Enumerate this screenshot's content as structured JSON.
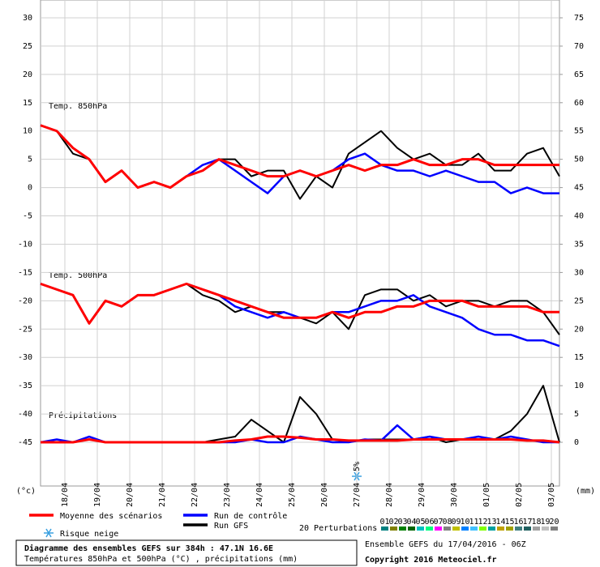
{
  "chart_data": {
    "type": "line",
    "panel_labels": [
      "Temp. 850hPa",
      "Temp. 500hPa",
      "Précipitations"
    ],
    "ylabel": "(°c)",
    "y2label": "(mm)",
    "xlim": [
      0,
      384
    ],
    "ylim": [
      -45,
      30
    ],
    "yticks": [
      -45,
      -40,
      -35,
      -30,
      -25,
      -20,
      -15,
      -10,
      -5,
      0,
      5,
      10,
      15,
      20,
      25,
      30
    ],
    "y2lim": [
      0,
      75
    ],
    "y2ticks": [
      0,
      5,
      10,
      15,
      20,
      25,
      30,
      35,
      40,
      45,
      50,
      55,
      60,
      65,
      70,
      75
    ],
    "xticks": [
      {
        "value": 18,
        "label": "18/04"
      },
      {
        "value": 42,
        "label": "19/04"
      },
      {
        "value": 66,
        "label": "20/04"
      },
      {
        "value": 90,
        "label": "21/04"
      },
      {
        "value": 114,
        "label": "22/04"
      },
      {
        "value": 138,
        "label": "23/04"
      },
      {
        "value": 162,
        "label": "24/04"
      },
      {
        "value": 186,
        "label": "25/04"
      },
      {
        "value": 210,
        "label": "26/04"
      },
      {
        "value": 234,
        "label": "27/04"
      },
      {
        "value": 258,
        "label": "28/04"
      },
      {
        "value": 282,
        "label": "29/04"
      },
      {
        "value": 306,
        "label": "30/04"
      },
      {
        "value": 330,
        "label": "01/05"
      },
      {
        "value": 354,
        "label": "02/05"
      },
      {
        "value": 378,
        "label": "03/05"
      }
    ],
    "grid": true,
    "x": [
      0,
      12,
      24,
      36,
      48,
      60,
      72,
      84,
      96,
      108,
      120,
      132,
      144,
      156,
      168,
      180,
      192,
      204,
      216,
      228,
      240,
      252,
      264,
      276,
      288,
      300,
      312,
      324,
      336,
      348,
      360,
      372,
      384
    ],
    "series": [
      {
        "name": "Moyenne des scénarios",
        "color": "#ff0000",
        "width": 3,
        "values": [
          11,
          10,
          7,
          5,
          1,
          3,
          0,
          1,
          0,
          2,
          3,
          5,
          4,
          3,
          2,
          2,
          3,
          2,
          3,
          4,
          3,
          4,
          4,
          5,
          4,
          4,
          5,
          5,
          4,
          4,
          4,
          4,
          4
        ]
      },
      {
        "name": "Run de contrôle",
        "color": "#0000ff",
        "width": 2.5,
        "values": [
          11,
          10,
          7,
          5,
          1,
          3,
          0,
          1,
          0,
          2,
          4,
          5,
          3,
          1,
          -1,
          2,
          3,
          2,
          3,
          5,
          6,
          4,
          3,
          3,
          2,
          3,
          2,
          1,
          1,
          -1,
          0,
          -1,
          -1
        ]
      },
      {
        "name": "Run GFS",
        "color": "#000000",
        "width": 2,
        "values": [
          11,
          10,
          6,
          5,
          1,
          3,
          0,
          1,
          0,
          2,
          3,
          5,
          5,
          2,
          3,
          3,
          -2,
          2,
          0,
          6,
          8,
          10,
          7,
          5,
          6,
          4,
          4,
          6,
          3,
          3,
          6,
          7,
          2
        ]
      },
      {
        "name": "Moyenne des scénarios",
        "color": "#ff0000",
        "width": 3,
        "values": [
          -17,
          -18,
          -19,
          -24,
          -20,
          -21,
          -19,
          -19,
          -18,
          -17,
          -18,
          -19,
          -20,
          -21,
          -22,
          -23,
          -23,
          -23,
          -22,
          -23,
          -22,
          -22,
          -21,
          -21,
          -20,
          -20,
          -20,
          -21,
          -21,
          -21,
          -21,
          -22,
          -22
        ]
      },
      {
        "name": "Run de contrôle",
        "color": "#0000ff",
        "width": 2.5,
        "values": [
          -17,
          -18,
          -19,
          -24,
          -20,
          -21,
          -19,
          -19,
          -18,
          -17,
          -18,
          -19,
          -21,
          -22,
          -23,
          -22,
          -23,
          -23,
          -22,
          -22,
          -21,
          -20,
          -20,
          -19,
          -21,
          -22,
          -23,
          -25,
          -26,
          -26,
          -27,
          -27,
          -28
        ]
      },
      {
        "name": "Run GFS",
        "color": "#000000",
        "width": 2,
        "values": [
          -17,
          -18,
          -19,
          -24,
          -20,
          -21,
          -19,
          -19,
          -18,
          -17,
          -19,
          -20,
          -22,
          -21,
          -22,
          -22,
          -23,
          -24,
          -22,
          -25,
          -19,
          -18,
          -18,
          -20,
          -19,
          -21,
          -20,
          -20,
          -21,
          -20,
          -20,
          -22,
          -26
        ]
      },
      {
        "name": "Moyenne des scénarios",
        "color": "#ff0000",
        "width": 3,
        "axis": "y2",
        "values": [
          0,
          0,
          0,
          0.5,
          0,
          0,
          0,
          0,
          0,
          0,
          0,
          0,
          0.3,
          0.5,
          1,
          1,
          0.8,
          0.5,
          0.5,
          0.3,
          0.3,
          0.3,
          0.3,
          0.5,
          0.5,
          0.5,
          0.5,
          0.5,
          0.5,
          0.5,
          0.3,
          0.3,
          0
        ]
      },
      {
        "name": "Run de contrôle",
        "color": "#0000ff",
        "width": 2.5,
        "axis": "y2",
        "values": [
          0,
          0.5,
          0,
          1,
          0,
          0,
          0,
          0,
          0,
          0,
          0,
          0,
          0,
          0.5,
          0,
          0,
          1,
          0.5,
          0,
          0,
          0.5,
          0.3,
          3,
          0.5,
          1,
          0.5,
          0.5,
          1,
          0.5,
          1,
          0.5,
          0,
          0
        ]
      },
      {
        "name": "Run GFS",
        "color": "#000000",
        "width": 2,
        "axis": "y2",
        "values": [
          0,
          0,
          0,
          0.5,
          0,
          0,
          0,
          0,
          0,
          0,
          0,
          0.5,
          1,
          4,
          2,
          0,
          8,
          5,
          0.5,
          0,
          0.5,
          0.5,
          0.5,
          0.5,
          1,
          0,
          0.5,
          0.5,
          0.5,
          2,
          5,
          10,
          0
        ]
      }
    ],
    "snow_risk": {
      "label": "Risque neige",
      "x": 234,
      "text": "5%"
    },
    "perturbations": {
      "label": "20 Perturbations",
      "names": [
        "01",
        "02",
        "03",
        "04",
        "05",
        "06",
        "07",
        "08",
        "09",
        "10",
        "11",
        "12",
        "13",
        "14",
        "15",
        "16",
        "17",
        "18",
        "19",
        "20"
      ],
      "colors": [
        "#008080",
        "#808000",
        "#008000",
        "#006400",
        "#00c0c0",
        "#00ff80",
        "#ff00ff",
        "#808080",
        "#c0c000",
        "#0080ff",
        "#40c0ff",
        "#80ff00",
        "#00a0a0",
        "#c0a000",
        "#a0a000",
        "#408080",
        "#206060",
        "#a0a0a0",
        "#c0c0c0",
        "#808080"
      ]
    },
    "footer": {
      "title": "Diagramme des ensembles GEFS sur 384h : 47.1N 16.6E",
      "subtitle": "Températures 850hPa et 500hPa (°C) , précipitations (mm)",
      "run": "Ensemble GEFS du 17/04/2016 - 06Z",
      "copyright": "Copyright 2016 Meteociel.fr"
    }
  }
}
